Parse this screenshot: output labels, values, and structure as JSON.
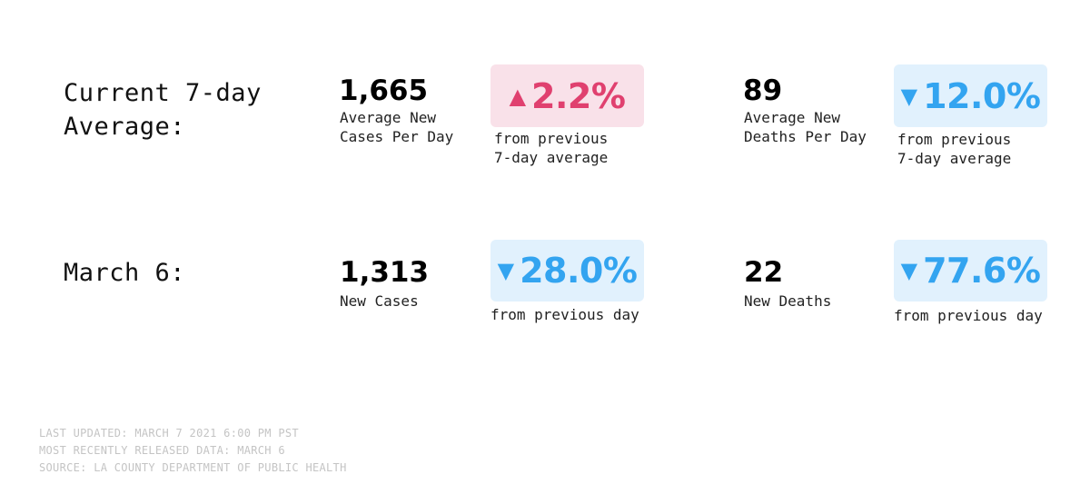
{
  "rows": {
    "average": {
      "label_line1": "Current 7-day",
      "label_line2": "Average:",
      "cases": {
        "value": "1,665",
        "desc_line1": "Average New",
        "desc_line2": "Cases Per Day",
        "change": {
          "direction": "up",
          "arrow": "▲",
          "percent": "2.2%",
          "note_line1": "from previous",
          "note_line2": "7-day average"
        }
      },
      "deaths": {
        "value": "89",
        "desc_line1": "Average New",
        "desc_line2": "Deaths Per Day",
        "change": {
          "direction": "down",
          "arrow": "▼",
          "percent": "12.0%",
          "note_line1": "from previous",
          "note_line2": "7-day average"
        }
      }
    },
    "daily": {
      "label": "March 6:",
      "cases": {
        "value": "1,313",
        "desc": "New Cases",
        "change": {
          "direction": "down",
          "arrow": "▼",
          "percent": "28.0%",
          "note": "from previous day"
        }
      },
      "deaths": {
        "value": "22",
        "desc": "New Deaths",
        "change": {
          "direction": "down",
          "arrow": "▼",
          "percent": "77.6%",
          "note": "from previous day"
        }
      }
    }
  },
  "colors": {
    "increase": "#e0406f",
    "increase_bg": "#f9e1e9",
    "decrease": "#33a4f0",
    "decrease_bg": "#e1f1fd"
  },
  "footer": {
    "updated": "LAST UPDATED: MARCH 7 2021 6:00 PM PST",
    "released": "MOST RECENTLY RELEASED DATA: MARCH 6",
    "source": "SOURCE: LA COUNTY DEPARTMENT OF PUBLIC HEALTH"
  }
}
